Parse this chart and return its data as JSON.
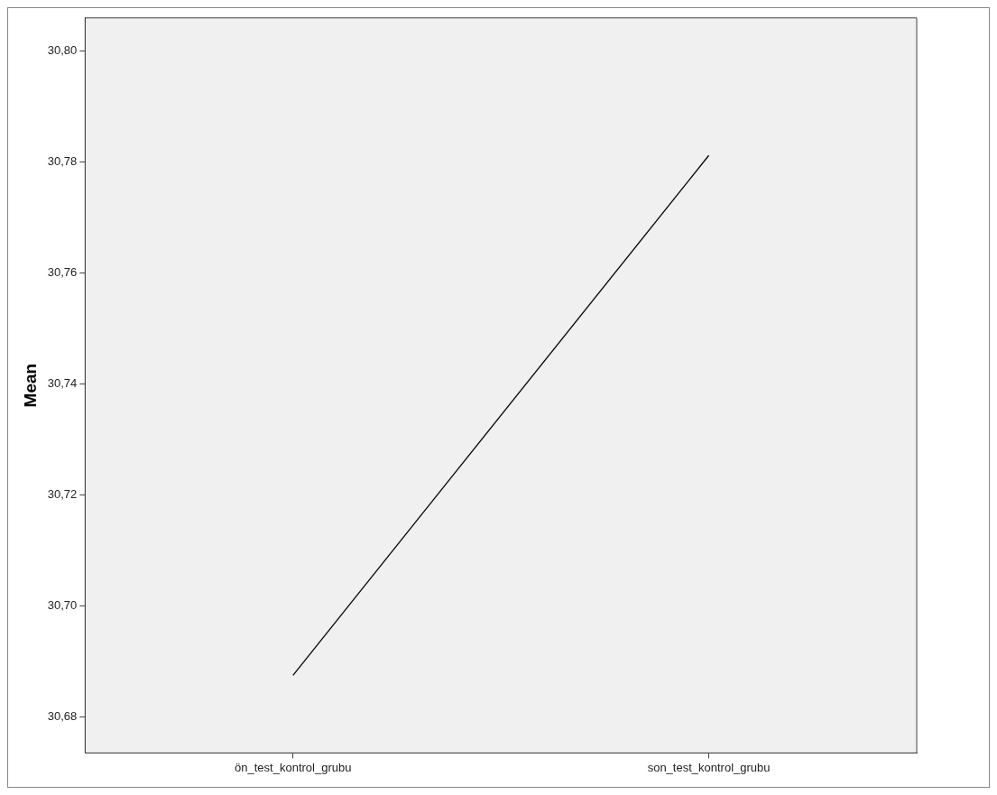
{
  "chart_data": {
    "type": "line",
    "ylabel": "Mean",
    "categories": [
      "ön_test_kontrol_grubu",
      "son_test_kontrol_grubu"
    ],
    "series": [
      {
        "color": "#000000",
        "values": [
          30.6875,
          30.7812
        ]
      }
    ],
    "ylim": [
      30.6735,
      30.806
    ],
    "yticks": [
      {
        "value": 30.68,
        "label": "30,68"
      },
      {
        "value": 30.7,
        "label": "30,70"
      },
      {
        "value": 30.72,
        "label": "30,72"
      },
      {
        "value": 30.74,
        "label": "30,74"
      },
      {
        "value": 30.76,
        "label": "30,76"
      },
      {
        "value": 30.78,
        "label": "30,78"
      },
      {
        "value": 30.8,
        "label": "30,80"
      }
    ],
    "grid": false,
    "legend": false,
    "marker": "none",
    "line_style": "solid"
  }
}
